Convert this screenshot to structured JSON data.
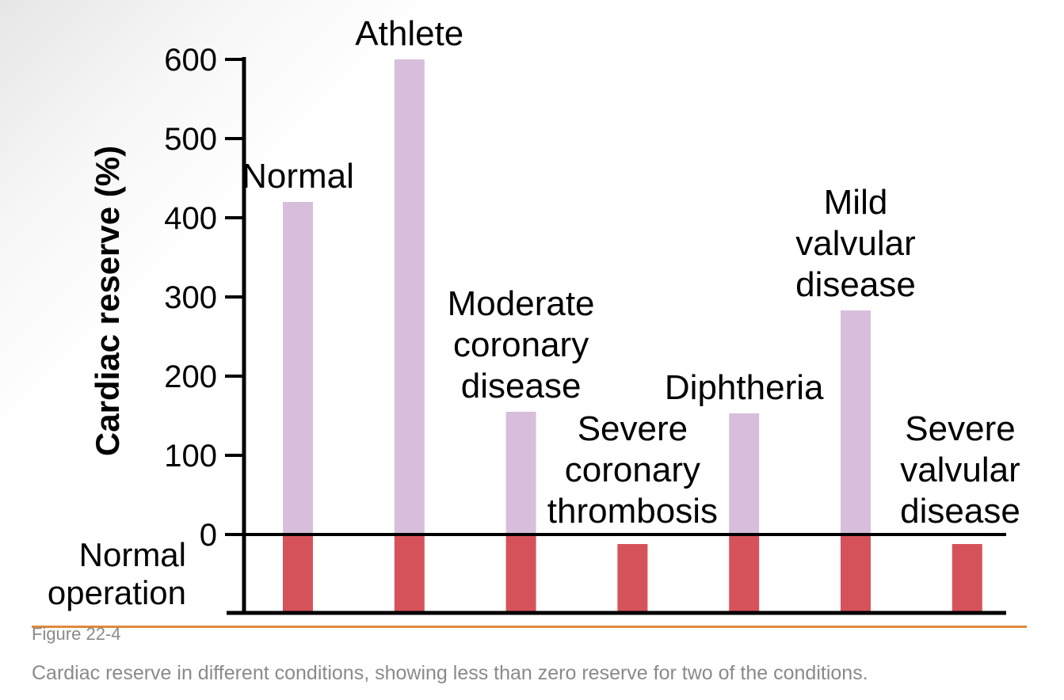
{
  "figure": {
    "label": "Figure 22-4",
    "caption": "Cardiac reserve in different conditions, showing less than zero reserve for two of the conditions.",
    "rule_color": "#e0893b"
  },
  "chart_data": {
    "type": "bar",
    "ylabel": "Cardiac reserve (%)",
    "ylim": [
      -100,
      600
    ],
    "yticks": [
      0,
      100,
      200,
      300,
      400,
      500,
      600
    ],
    "baseline_label": [
      "Normal",
      "operation"
    ],
    "categories": [
      {
        "label_lines": [
          "Normal"
        ]
      },
      {
        "label_lines": [
          "Athlete"
        ]
      },
      {
        "label_lines": [
          "Moderate",
          "coronary",
          "disease"
        ]
      },
      {
        "label_lines": [
          "Severe",
          "coronary",
          "thrombosis"
        ]
      },
      {
        "label_lines": [
          "Diphtheria"
        ]
      },
      {
        "label_lines": [
          "Mild",
          "valvular",
          "disease"
        ]
      },
      {
        "label_lines": [
          "Severe",
          "valvular",
          "disease"
        ]
      }
    ],
    "values": [
      420,
      600,
      155,
      -12,
      153,
      283,
      -12
    ],
    "colors": {
      "reserve": "#d7bfdc",
      "normal_operation": "#d6525b",
      "axis": "#000000"
    },
    "grid": false,
    "legend": "none"
  }
}
